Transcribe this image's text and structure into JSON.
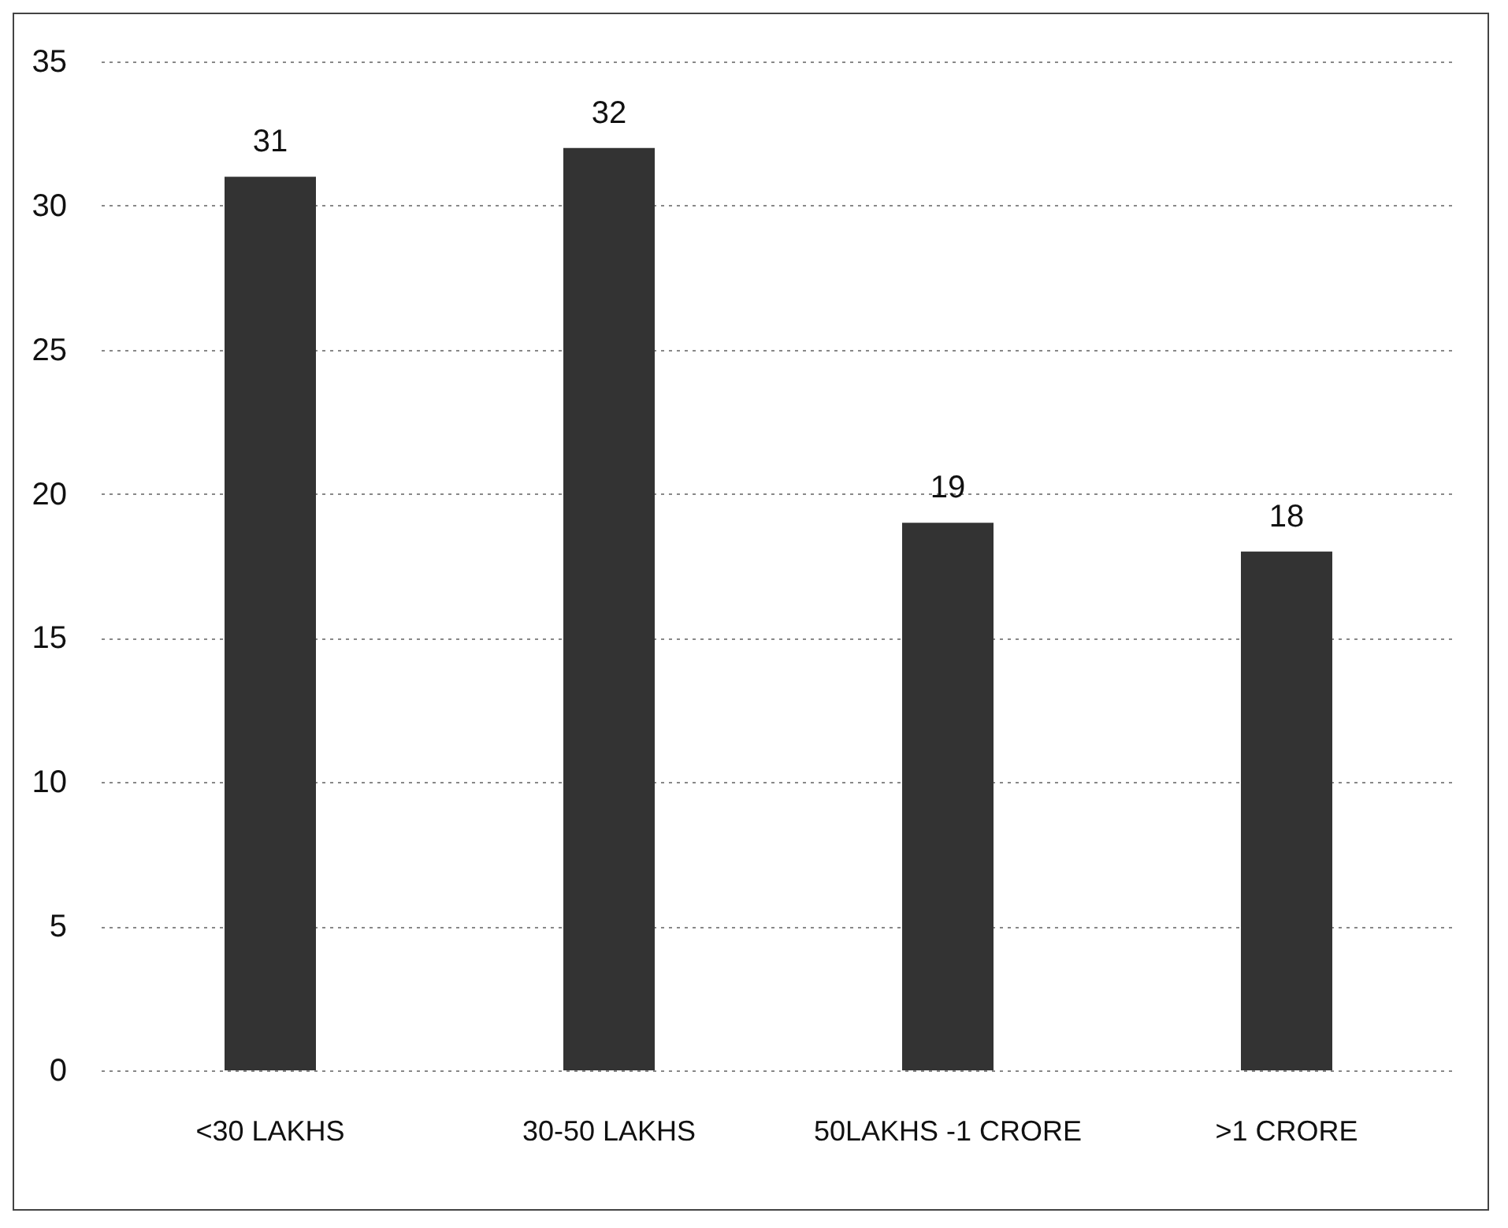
{
  "chart_data": {
    "type": "bar",
    "categories": [
      "<30 LAKHS",
      "30-50 LAKHS",
      "50LAKHS -1 CRORE",
      ">1 CRORE"
    ],
    "values": [
      31,
      32,
      19,
      18
    ],
    "color": "#333333",
    "ylim": [
      0,
      35
    ],
    "yticks": [
      0,
      5,
      10,
      15,
      20,
      25,
      30,
      35
    ],
    "grid": "y",
    "data_labels": true
  }
}
